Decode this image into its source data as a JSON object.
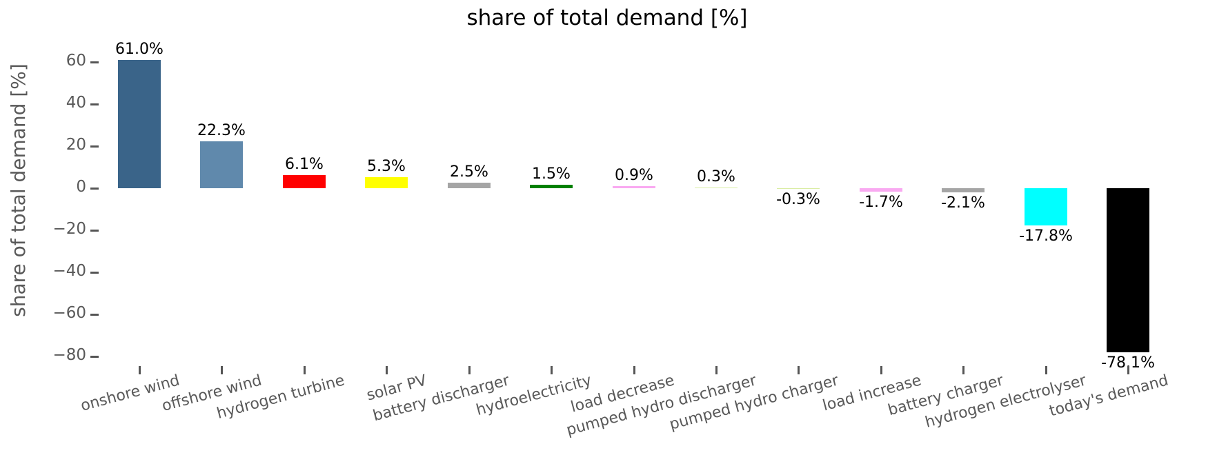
{
  "title": "share of total demand [%]",
  "y_axis_label": "share of total demand [%]",
  "chart_data": {
    "type": "bar",
    "title": "share of total demand [%]",
    "xlabel": "",
    "ylabel": "share of total demand [%]",
    "ylim": [
      -85,
      70
    ],
    "grid": false,
    "legend": "none",
    "categories": [
      "onshore wind",
      "offshore wind",
      "hydrogen turbine",
      "solar PV",
      "battery discharger",
      "hydroelectricity",
      "load decrease",
      "pumped hydro discharger",
      "pumped hydro charger",
      "load increase",
      "battery charger",
      "hydrogen electrolyser",
      "today's demand"
    ],
    "values": [
      61.0,
      22.3,
      6.1,
      5.3,
      2.5,
      1.5,
      0.9,
      0.3,
      -0.3,
      -1.7,
      -2.1,
      -17.8,
      -78.1
    ],
    "value_labels": [
      "61.0%",
      "22.3%",
      "6.1%",
      "5.3%",
      "2.5%",
      "1.5%",
      "0.9%",
      "0.3%",
      "-0.3%",
      "-1.7%",
      "-2.1%",
      "-17.8%",
      "-78.1%"
    ],
    "bar_colors": [
      "#3a6489",
      "#6089ac",
      "#ff0000",
      "#ffff00",
      "#a5a5a5",
      "#008000",
      "#f9a9f1",
      "#d9eda3",
      "#d9eda3",
      "#f9a9f1",
      "#a5a5a5",
      "#00ffff",
      "#000000"
    ],
    "yticks": [
      60,
      40,
      20,
      0,
      -20,
      -40,
      -60,
      -80
    ],
    "ytick_labels": [
      "60",
      "40",
      "20",
      "0",
      "−20",
      "−40",
      "−60",
      "−80"
    ],
    "tick_color": "#555555",
    "axis_text_color": "#595959",
    "value_label_color": "#000000",
    "title_color": "#000000"
  }
}
